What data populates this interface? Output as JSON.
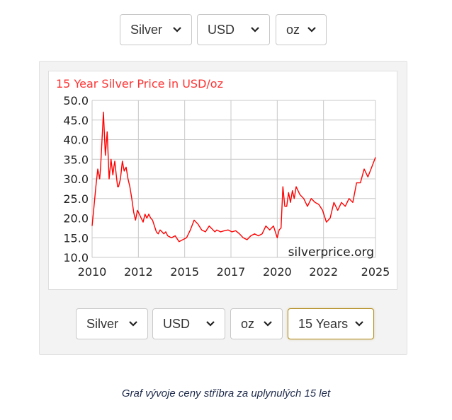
{
  "top_selectors": {
    "metal": "Silver",
    "currency": "USD",
    "unit": "oz"
  },
  "bottom_selectors": {
    "metal": "Silver",
    "currency": "USD",
    "unit": "oz",
    "period": "15 Years"
  },
  "caption": "Graf vývoje ceny stříbra za uplynulých 15 let",
  "colors": {
    "line": "#ff0000",
    "title": "#ff3333",
    "grid": "#c8c8c8",
    "active_border": "#b08a1a"
  },
  "icons": {
    "dropdown": "chevron-down-icon"
  },
  "chart_data": {
    "type": "line",
    "title": "15 Year Silver Price in USD/oz",
    "watermark": "silverprice.org",
    "xlabel": "",
    "ylabel": "",
    "xlim": [
      2010.0,
      2025.0
    ],
    "ylim": [
      10,
      50
    ],
    "yticks": [
      "10.0",
      "15.0",
      "20.0",
      "25.0",
      "30.0",
      "35.0",
      "40.0",
      "45.0",
      "50.0"
    ],
    "xticks": [
      "2010",
      "2012",
      "2015",
      "2017",
      "2020",
      "2022",
      "2025"
    ],
    "grid": true,
    "series": [
      {
        "x": [
          2010.0,
          2010.1,
          2010.2,
          2010.3,
          2010.4,
          2010.45,
          2010.5,
          2010.6,
          2010.7,
          2010.8,
          2010.9,
          2011.0,
          2011.1,
          2011.15,
          2011.2,
          2011.3,
          2011.35,
          2011.4,
          2011.5,
          2011.6,
          2011.7,
          2011.8,
          2011.9,
          2012.0,
          2012.1,
          2012.2,
          2012.3,
          2012.4,
          2012.5,
          2012.6,
          2012.7,
          2012.8,
          2012.9,
          2013.0,
          2013.1,
          2013.2,
          2013.3,
          2013.4,
          2013.5,
          2013.6,
          2013.7,
          2013.8,
          2013.9,
          2014.0,
          2014.2,
          2014.4,
          2014.6,
          2014.8,
          2015.0,
          2015.2,
          2015.4,
          2015.6,
          2015.8,
          2016.0,
          2016.2,
          2016.4,
          2016.5,
          2016.6,
          2016.8,
          2017.0,
          2017.2,
          2017.4,
          2017.6,
          2017.8,
          2018.0,
          2018.2,
          2018.4,
          2018.6,
          2018.8,
          2019.0,
          2019.2,
          2019.4,
          2019.6,
          2019.8,
          2019.9,
          2020.0,
          2020.1,
          2020.2,
          2020.3,
          2020.4,
          2020.5,
          2020.6,
          2020.7,
          2020.8,
          2021.0,
          2021.2,
          2021.4,
          2021.6,
          2021.8,
          2022.0,
          2022.2,
          2022.4,
          2022.6,
          2022.8,
          2023.0,
          2023.2,
          2023.4,
          2023.6,
          2023.8,
          2024.0,
          2024.2,
          2024.4,
          2024.6,
          2024.8,
          2025.0
        ],
        "y": [
          18.0,
          23.0,
          28.0,
          32.5,
          30.0,
          33.0,
          37.5,
          47.0,
          36.0,
          42.0,
          30.0,
          35.0,
          31.0,
          33.0,
          34.5,
          30.0,
          28.0,
          28.0,
          30.0,
          34.5,
          32.0,
          33.0,
          30.0,
          28.0,
          25.0,
          21.5,
          19.5,
          22.0,
          21.0,
          20.0,
          19.0,
          21.0,
          20.0,
          21.0,
          20.0,
          19.5,
          18.0,
          16.5,
          16.0,
          17.0,
          16.5,
          16.0,
          16.5,
          15.5,
          15.0,
          15.5,
          14.0,
          14.5,
          15.0,
          17.0,
          19.5,
          18.5,
          17.0,
          16.5,
          18.0,
          17.0,
          16.5,
          17.0,
          16.5,
          16.8,
          17.0,
          16.5,
          16.8,
          16.0,
          15.0,
          14.5,
          15.5,
          16.0,
          15.5,
          16.0,
          18.0,
          17.0,
          18.0,
          15.0,
          17.0,
          17.5,
          28.0,
          23.0,
          23.0,
          26.5,
          24.0,
          27.0,
          25.0,
          28.0,
          26.0,
          25.0,
          23.0,
          25.0,
          24.0,
          23.5,
          22.0,
          19.0,
          20.0,
          24.0,
          22.0,
          24.0,
          23.0,
          25.0,
          24.0,
          29.0,
          29.0,
          32.5,
          30.5,
          33.0,
          35.5
        ]
      }
    ]
  }
}
